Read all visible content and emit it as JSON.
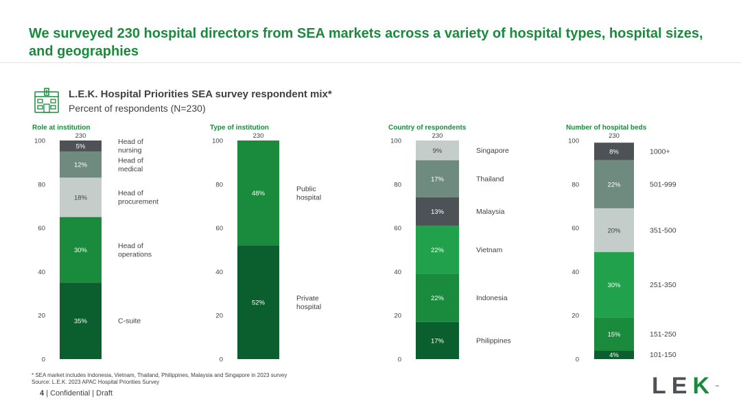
{
  "headline": "We surveyed 230 hospital directors from SEA markets across a variety of hospital types, hospital sizes, and geographies",
  "subtitle": {
    "title": "L.E.K. Hospital Priorities SEA survey respondent mix*",
    "sub": "Percent of respondents (N=230)"
  },
  "chart_data": [
    {
      "type": "bar",
      "stacked": true,
      "title": "Role at institution",
      "total_label": "230",
      "ylim": [
        0,
        100
      ],
      "yticks": [
        0,
        20,
        40,
        60,
        80,
        100
      ],
      "segments": [
        {
          "label": "C-suite",
          "value": 35,
          "value_label": "35%",
          "color": "#0b5e2e"
        },
        {
          "label": "Head of operations",
          "value": 30,
          "value_label": "30%",
          "color": "#1a8a3c"
        },
        {
          "label": "Head of procurement",
          "value": 18,
          "value_label": "18%",
          "color": "#c5cdca"
        },
        {
          "label": "Head of medical",
          "value": 12,
          "value_label": "12%",
          "color": "#6f8a7f"
        },
        {
          "label": "Head of nursing",
          "value": 5,
          "value_label": "5%",
          "color": "#4d5257"
        }
      ]
    },
    {
      "type": "bar",
      "stacked": true,
      "title": "Type of institution",
      "total_label": "230",
      "ylim": [
        0,
        100
      ],
      "yticks": [
        0,
        20,
        40,
        60,
        80,
        100
      ],
      "segments": [
        {
          "label": "Private hospital",
          "value": 52,
          "value_label": "52%",
          "color": "#0b5e2e"
        },
        {
          "label": "Public hospital",
          "value": 48,
          "value_label": "48%",
          "color": "#1a8a3c"
        }
      ]
    },
    {
      "type": "bar",
      "stacked": true,
      "title": "Country of respondents",
      "total_label": "230",
      "ylim": [
        0,
        100
      ],
      "yticks": [
        0,
        20,
        40,
        60,
        80,
        100
      ],
      "segments": [
        {
          "label": "Philippines",
          "value": 17,
          "value_label": "17%",
          "color": "#0b5e2e"
        },
        {
          "label": "Indonesia",
          "value": 22,
          "value_label": "22%",
          "color": "#1a8a3c"
        },
        {
          "label": "Vietnam",
          "value": 22,
          "value_label": "22%",
          "color": "#22a14c"
        },
        {
          "label": "Malaysia",
          "value": 13,
          "value_label": "13%",
          "color": "#4d5257"
        },
        {
          "label": "Thailand",
          "value": 17,
          "value_label": "17%",
          "color": "#6f8a7f"
        },
        {
          "label": "Singapore",
          "value": 9,
          "value_label": "9%",
          "color": "#c5cdca"
        }
      ]
    },
    {
      "type": "bar",
      "stacked": true,
      "title": "Number of hospital beds",
      "total_label": "230",
      "ylim": [
        0,
        100
      ],
      "yticks": [
        0,
        20,
        40,
        60,
        80,
        100
      ],
      "segments": [
        {
          "label": "101-150",
          "value": 4,
          "value_label": "4%",
          "color": "#0b5e2e"
        },
        {
          "label": "151-250",
          "value": 15,
          "value_label": "15%",
          "color": "#1a8a3c"
        },
        {
          "label": "251-350",
          "value": 30,
          "value_label": "30%",
          "color": "#22a14c"
        },
        {
          "label": "351-500",
          "value": 20,
          "value_label": "20%",
          "color": "#c5cdca"
        },
        {
          "label": "501-999",
          "value": 22,
          "value_label": "22%",
          "color": "#6f8a7f"
        },
        {
          "label": "1000+",
          "value": 8,
          "value_label": "8%",
          "color": "#4d5257"
        }
      ]
    }
  ],
  "footnote": {
    "line1": "* SEA market includes Indonesia, Vietnam, Thailand, Philippines, Malaysia and Singapore in 2023 survey",
    "line2": "Source: L.E.K. 2023 APAC Hospital Priorities Survey"
  },
  "footer": {
    "page_number": "4",
    "text": "| Confidential | Draft"
  },
  "logo": {
    "letters": [
      "L",
      "E",
      "K"
    ],
    "tm": "™"
  },
  "colors": {
    "brand_green": "#1a8a3c",
    "text": "#404040"
  }
}
